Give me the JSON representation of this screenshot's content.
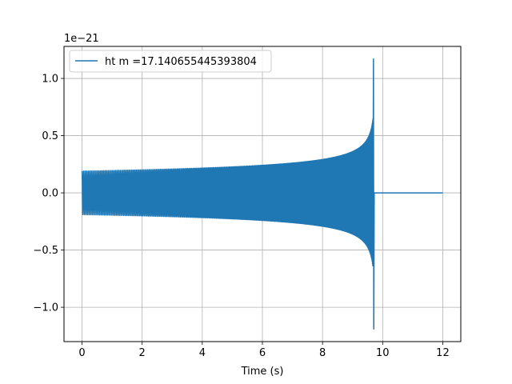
{
  "chart_data": {
    "type": "line",
    "title": "",
    "xlabel": "Time (s)",
    "ylabel": "",
    "y_offset_text": "1e−21",
    "xlim": [
      -0.6,
      12.6
    ],
    "ylim": [
      -1.3,
      1.28
    ],
    "x_ticks": [
      0,
      2,
      4,
      6,
      8,
      10,
      12
    ],
    "x_tick_labels": [
      "0",
      "2",
      "4",
      "6",
      "8",
      "10",
      "12"
    ],
    "y_ticks": [
      -1.0,
      -0.5,
      0.0,
      0.5,
      1.0
    ],
    "y_tick_labels": [
      "−1.0",
      "−0.5",
      "0.0",
      "0.5",
      "1.0"
    ],
    "grid": true,
    "legend_position": "top-left",
    "series": [
      {
        "name": "ht m =17.140655445393804",
        "color": "#1f77b4",
        "signal": {
          "kind": "chirp",
          "t_start": 0.0,
          "t_merger": 9.7,
          "t_end": 12.0,
          "initial_amplitude": 0.19,
          "peak_max": 1.17,
          "peak_min": -1.19,
          "post_merger_value": 0.0
        }
      }
    ]
  }
}
